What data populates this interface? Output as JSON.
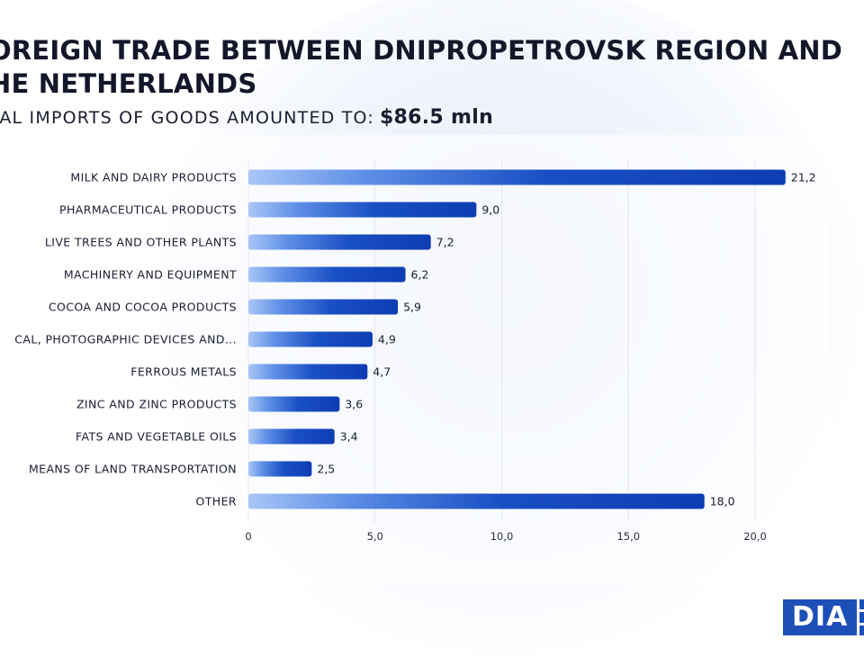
{
  "header": {
    "title": "OREIGN TRADE BETWEEN DNIPROPETROVSK REGION AND HE NETHERLANDS",
    "subtitle_label": "TAL IMPORTS OF GOODS AMOUNTED TO:",
    "subtitle_total": "$86.5  mln"
  },
  "logo": {
    "text": "DIA"
  },
  "colors": {
    "bar_start": "#a9c6f7",
    "bar_end": "#0e3db3",
    "grid": "#e3e6ee",
    "text": "#1a1d30"
  },
  "chart_data": {
    "type": "bar",
    "orientation": "horizontal",
    "categories": [
      "MILK AND DAIRY PRODUCTS",
      "PHARMACEUTICAL PRODUCTS",
      "LIVE TREES AND OTHER PLANTS",
      "MACHINERY AND EQUIPMENT",
      "COCOA AND COCOA PRODUCTS",
      "CAL, PHOTOGRAPHIC DEVICES AND...",
      "FERROUS METALS",
      "ZINC AND ZINC PRODUCTS",
      "FATS AND VEGETABLE OILS",
      "MEANS OF LAND TRANSPORTATION",
      "OTHER"
    ],
    "values": [
      21.2,
      9.0,
      7.2,
      6.2,
      5.9,
      4.9,
      4.7,
      3.6,
      3.4,
      2.5,
      18.0
    ],
    "value_labels": [
      "21,2",
      "9,0",
      "7,2",
      "6,2",
      "5,9",
      "4,9",
      "4,7",
      "3,6",
      "3,4",
      "2,5",
      "18,0"
    ],
    "xticks": [
      0,
      5,
      10,
      15,
      20
    ],
    "xtick_labels": [
      "0",
      "5,0",
      "10,0",
      "15,0",
      "20,0"
    ],
    "xlim": [
      0,
      20.3
    ],
    "grid": true
  }
}
